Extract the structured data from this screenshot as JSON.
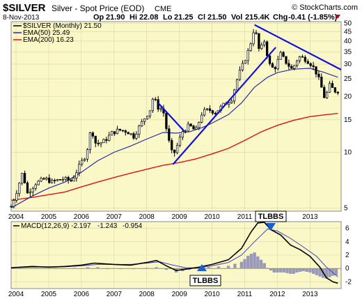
{
  "header": {
    "symbol": "$SILVER",
    "name": "Silver - Spot Price (EOD)",
    "exchange": "CME",
    "date": "8-Nov-2013",
    "watermark": "© StockCharts.com",
    "ohlc": {
      "op_label": "Op",
      "op": "21.90",
      "hi_label": "Hi",
      "hi": "22.08",
      "lo_label": "Lo",
      "lo": "21.25",
      "cl_label": "Cl",
      "cl": "21.50",
      "vol_label": "Vol",
      "vol": "215.4K",
      "chg_label": "Chg",
      "chg": "-0.41 (-1.85%)"
    }
  },
  "legend": {
    "price": "$SILVER (Monthly) 21.50",
    "ema50": "EMA(50) 25.49",
    "ema200": "EMA(200) 16.23"
  },
  "colors": {
    "panel_bg": "#fbf8c8",
    "ema50": "#2a2aa8",
    "ema200": "#e01010",
    "trendline": "#1010e0",
    "candle": "#000000",
    "histogram": "#9a9ab8",
    "signal": "#4040c0",
    "negative": "#cc0000"
  },
  "annotations": {
    "tlbbs_top": "TLBBS",
    "tlbbs_bottom": "TLBBS"
  },
  "chart_data": [
    {
      "type": "candlestick",
      "title": "$SILVER Silver - Spot Price (EOD) CME",
      "scale": "log",
      "ylim": [
        4.8,
        51
      ],
      "y_ticks": [
        5,
        10,
        15,
        20,
        25,
        30,
        35,
        40,
        45,
        50
      ],
      "x_ticks": [
        "2004",
        "2005",
        "2006",
        "2007",
        "2008",
        "2009",
        "2010",
        "2011",
        "2012",
        "2013"
      ],
      "x_range": [
        2003.85,
        2013.95
      ],
      "close_series": [
        [
          2003.85,
          5.1
        ],
        [
          2004.0,
          6.0
        ],
        [
          2004.2,
          7.8
        ],
        [
          2004.35,
          6.0
        ],
        [
          2004.6,
          6.8
        ],
        [
          2004.9,
          7.2
        ],
        [
          2005.1,
          6.9
        ],
        [
          2005.4,
          7.2
        ],
        [
          2005.7,
          7.0
        ],
        [
          2005.95,
          8.5
        ],
        [
          2006.15,
          9.8
        ],
        [
          2006.3,
          13.5
        ],
        [
          2006.45,
          11.0
        ],
        [
          2006.7,
          11.5
        ],
        [
          2006.95,
          12.8
        ],
        [
          2007.15,
          13.2
        ],
        [
          2007.4,
          13.0
        ],
        [
          2007.6,
          12.2
        ],
        [
          2007.85,
          14.5
        ],
        [
          2008.1,
          17.0
        ],
        [
          2008.2,
          20.0
        ],
        [
          2008.35,
          17.5
        ],
        [
          2008.5,
          17.0
        ],
        [
          2008.65,
          12.0
        ],
        [
          2008.8,
          9.5
        ],
        [
          2008.9,
          10.5
        ],
        [
          2009.1,
          13.0
        ],
        [
          2009.3,
          14.0
        ],
        [
          2009.5,
          13.0
        ],
        [
          2009.7,
          16.5
        ],
        [
          2009.9,
          17.0
        ],
        [
          2010.1,
          16.5
        ],
        [
          2010.35,
          18.0
        ],
        [
          2010.6,
          19.5
        ],
        [
          2010.8,
          26.0
        ],
        [
          2010.95,
          30.0
        ],
        [
          2011.15,
          37.0
        ],
        [
          2011.3,
          48.0
        ],
        [
          2011.45,
          35.0
        ],
        [
          2011.6,
          40.0
        ],
        [
          2011.75,
          30.0
        ],
        [
          2011.9,
          28.0
        ],
        [
          2012.1,
          34.0
        ],
        [
          2012.25,
          31.0
        ],
        [
          2012.45,
          28.0
        ],
        [
          2012.65,
          33.0
        ],
        [
          2012.85,
          32.0
        ],
        [
          2013.0,
          30.5
        ],
        [
          2013.15,
          28.0
        ],
        [
          2013.3,
          24.0
        ],
        [
          2013.45,
          19.5
        ],
        [
          2013.6,
          23.0
        ],
        [
          2013.75,
          21.5
        ],
        [
          2013.85,
          21.5
        ]
      ],
      "ema50": [
        [
          2003.85,
          5.0
        ],
        [
          2004.5,
          5.8
        ],
        [
          2005.0,
          6.4
        ],
        [
          2005.5,
          6.9
        ],
        [
          2006.0,
          7.8
        ],
        [
          2006.5,
          9.0
        ],
        [
          2007.0,
          10.0
        ],
        [
          2007.5,
          10.8
        ],
        [
          2008.0,
          11.8
        ],
        [
          2008.5,
          12.8
        ],
        [
          2008.9,
          12.7
        ],
        [
          2009.3,
          12.9
        ],
        [
          2009.7,
          13.6
        ],
        [
          2010.0,
          14.4
        ],
        [
          2010.5,
          16.0
        ],
        [
          2010.9,
          18.5
        ],
        [
          2011.3,
          22.5
        ],
        [
          2011.7,
          25.5
        ],
        [
          2012.0,
          27.0
        ],
        [
          2012.5,
          28.2
        ],
        [
          2013.0,
          28.5
        ],
        [
          2013.4,
          27.2
        ],
        [
          2013.85,
          25.5
        ]
      ],
      "ema200": [
        [
          2003.85,
          5.5
        ],
        [
          2004.5,
          5.7
        ],
        [
          2005.0,
          5.9
        ],
        [
          2005.5,
          6.1
        ],
        [
          2006.0,
          6.5
        ],
        [
          2006.5,
          6.9
        ],
        [
          2007.0,
          7.3
        ],
        [
          2007.5,
          7.7
        ],
        [
          2008.0,
          8.1
        ],
        [
          2008.5,
          8.5
        ],
        [
          2009.0,
          8.8
        ],
        [
          2009.5,
          9.2
        ],
        [
          2010.0,
          9.8
        ],
        [
          2010.5,
          10.5
        ],
        [
          2011.0,
          11.6
        ],
        [
          2011.5,
          12.9
        ],
        [
          2012.0,
          14.0
        ],
        [
          2012.5,
          14.9
        ],
        [
          2013.0,
          15.6
        ],
        [
          2013.5,
          16.0
        ],
        [
          2013.85,
          16.23
        ]
      ],
      "trendlines": [
        [
          [
            2008.35,
            18.5
          ],
          [
            2009.15,
            13.0
          ]
        ],
        [
          [
            2008.8,
            8.6
          ],
          [
            2011.95,
            37.0
          ]
        ],
        [
          [
            2011.3,
            49.0
          ],
          [
            2013.95,
            28.0
          ]
        ]
      ]
    },
    {
      "type": "line",
      "title": "MACD(12,26,9) -2.197, -1.243, -0.954",
      "legend": [
        "MACD(12,26,9) -2.197",
        "-1.243",
        "-0.954"
      ],
      "ylim": [
        -3,
        7
      ],
      "y_ticks": [
        -2,
        0,
        2,
        4,
        6
      ],
      "x_ticks": [
        "2004",
        "2005",
        "2006",
        "2007",
        "2008",
        "2009",
        "2010",
        "2011",
        "2012",
        "2013"
      ],
      "series": [
        {
          "name": "MACD",
          "values": [
            [
              2003.85,
              0.1
            ],
            [
              2004.5,
              0.3
            ],
            [
              2005.0,
              0.2
            ],
            [
              2005.5,
              0.3
            ],
            [
              2006.0,
              0.5
            ],
            [
              2006.4,
              0.8
            ],
            [
              2007.0,
              0.6
            ],
            [
              2007.5,
              0.5
            ],
            [
              2008.0,
              0.9
            ],
            [
              2008.3,
              1.2
            ],
            [
              2008.6,
              0.4
            ],
            [
              2008.9,
              -0.3
            ],
            [
              2009.2,
              -0.1
            ],
            [
              2009.6,
              0.2
            ],
            [
              2010.0,
              0.6
            ],
            [
              2010.5,
              1.3
            ],
            [
              2010.9,
              3.0
            ],
            [
              2011.2,
              5.5
            ],
            [
              2011.4,
              6.8
            ],
            [
              2011.6,
              6.9
            ],
            [
              2011.8,
              5.8
            ],
            [
              2012.1,
              5.0
            ],
            [
              2012.4,
              3.5
            ],
            [
              2012.7,
              2.8
            ],
            [
              2013.0,
              1.8
            ],
            [
              2013.3,
              0.2
            ],
            [
              2013.5,
              -1.4
            ],
            [
              2013.7,
              -2.0
            ],
            [
              2013.85,
              -2.2
            ]
          ]
        },
        {
          "name": "Signal",
          "values": [
            [
              2003.85,
              0.1
            ],
            [
              2004.5,
              0.2
            ],
            [
              2005.0,
              0.25
            ],
            [
              2005.5,
              0.25
            ],
            [
              2006.0,
              0.4
            ],
            [
              2006.5,
              0.6
            ],
            [
              2007.0,
              0.6
            ],
            [
              2007.5,
              0.6
            ],
            [
              2008.0,
              0.8
            ],
            [
              2008.4,
              1.0
            ],
            [
              2008.8,
              0.5
            ],
            [
              2009.2,
              0.1
            ],
            [
              2009.6,
              0.1
            ],
            [
              2010.0,
              0.4
            ],
            [
              2010.5,
              0.9
            ],
            [
              2010.9,
              2.0
            ],
            [
              2011.3,
              4.0
            ],
            [
              2011.7,
              5.9
            ],
            [
              2012.0,
              5.6
            ],
            [
              2012.4,
              4.5
            ],
            [
              2012.8,
              3.2
            ],
            [
              2013.2,
              1.8
            ],
            [
              2013.5,
              0.2
            ],
            [
              2013.85,
              -1.24
            ]
          ]
        },
        {
          "name": "Histogram",
          "values": [
            [
              2004.0,
              0.05
            ],
            [
              2004.6,
              0.1
            ],
            [
              2005.2,
              -0.05
            ],
            [
              2005.8,
              0.1
            ],
            [
              2006.2,
              0.2
            ],
            [
              2006.5,
              0.2
            ],
            [
              2006.8,
              -0.1
            ],
            [
              2007.2,
              -0.1
            ],
            [
              2007.6,
              -0.1
            ],
            [
              2008.0,
              0.1
            ],
            [
              2008.3,
              0.2
            ],
            [
              2008.6,
              -0.2
            ],
            [
              2008.9,
              -0.6
            ],
            [
              2009.1,
              -0.4
            ],
            [
              2009.3,
              -0.2
            ],
            [
              2009.6,
              0.1
            ],
            [
              2009.9,
              0.2
            ],
            [
              2010.2,
              0.3
            ],
            [
              2010.5,
              0.4
            ],
            [
              2010.7,
              0.7
            ],
            [
              2010.9,
              1.0
            ],
            [
              2011.0,
              1.4
            ],
            [
              2011.1,
              1.9
            ],
            [
              2011.2,
              2.2
            ],
            [
              2011.3,
              2.4
            ],
            [
              2011.4,
              1.8
            ],
            [
              2011.5,
              1.3
            ],
            [
              2011.6,
              0.8
            ],
            [
              2011.7,
              0.1
            ],
            [
              2011.8,
              -0.3
            ],
            [
              2011.9,
              -0.6
            ],
            [
              2012.0,
              -0.6
            ],
            [
              2012.1,
              -0.6
            ],
            [
              2012.2,
              -0.6
            ],
            [
              2012.3,
              -0.7
            ],
            [
              2012.4,
              -0.8
            ],
            [
              2012.5,
              -0.8
            ],
            [
              2012.6,
              -0.6
            ],
            [
              2012.7,
              -0.5
            ],
            [
              2012.8,
              -0.4
            ],
            [
              2012.9,
              -0.5
            ],
            [
              2013.0,
              -0.6
            ],
            [
              2013.1,
              -0.8
            ],
            [
              2013.2,
              -1.0
            ],
            [
              2013.3,
              -1.2
            ],
            [
              2013.4,
              -1.4
            ],
            [
              2013.5,
              -1.5
            ],
            [
              2013.6,
              -1.3
            ],
            [
              2013.7,
              -1.1
            ],
            [
              2013.8,
              -1.0
            ]
          ]
        }
      ]
    }
  ]
}
